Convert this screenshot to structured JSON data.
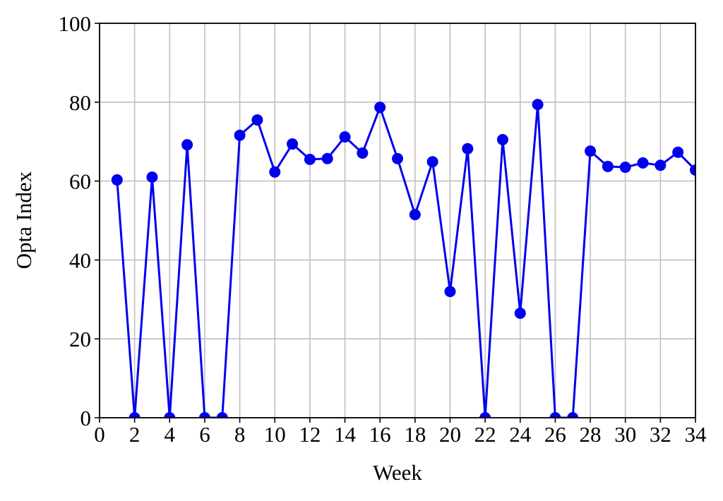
{
  "chart_data": {
    "type": "line",
    "x_label": "Week",
    "y_label": "Opta Index",
    "x": [
      1,
      2,
      3,
      4,
      5,
      6,
      7,
      8,
      9,
      10,
      11,
      12,
      13,
      14,
      15,
      16,
      17,
      18,
      19,
      20,
      21,
      22,
      23,
      24,
      25,
      26,
      27,
      28,
      29,
      30,
      31,
      32,
      33,
      34
    ],
    "series": [
      {
        "name": "Opta Index",
        "color": "#0000ee",
        "values": [
          60.3,
          0,
          61,
          0,
          69.2,
          0,
          0,
          71.6,
          75.5,
          62.3,
          69.4,
          65.5,
          65.7,
          71.2,
          67.1,
          78.7,
          65.7,
          51.5,
          64.9,
          32.0,
          68.2,
          0,
          70.5,
          26.5,
          79.4,
          0,
          0,
          67.6,
          63.7,
          63.5,
          64.6,
          64.0,
          67.3,
          62.8
        ]
      }
    ],
    "xlim": [
      0,
      34
    ],
    "xticks": [
      0,
      2,
      4,
      6,
      8,
      10,
      12,
      14,
      16,
      18,
      20,
      22,
      24,
      26,
      28,
      30,
      32,
      34
    ],
    "ylim": [
      0,
      100
    ],
    "yticks": [
      0,
      20,
      40,
      60,
      80,
      100
    ],
    "grid": true
  }
}
